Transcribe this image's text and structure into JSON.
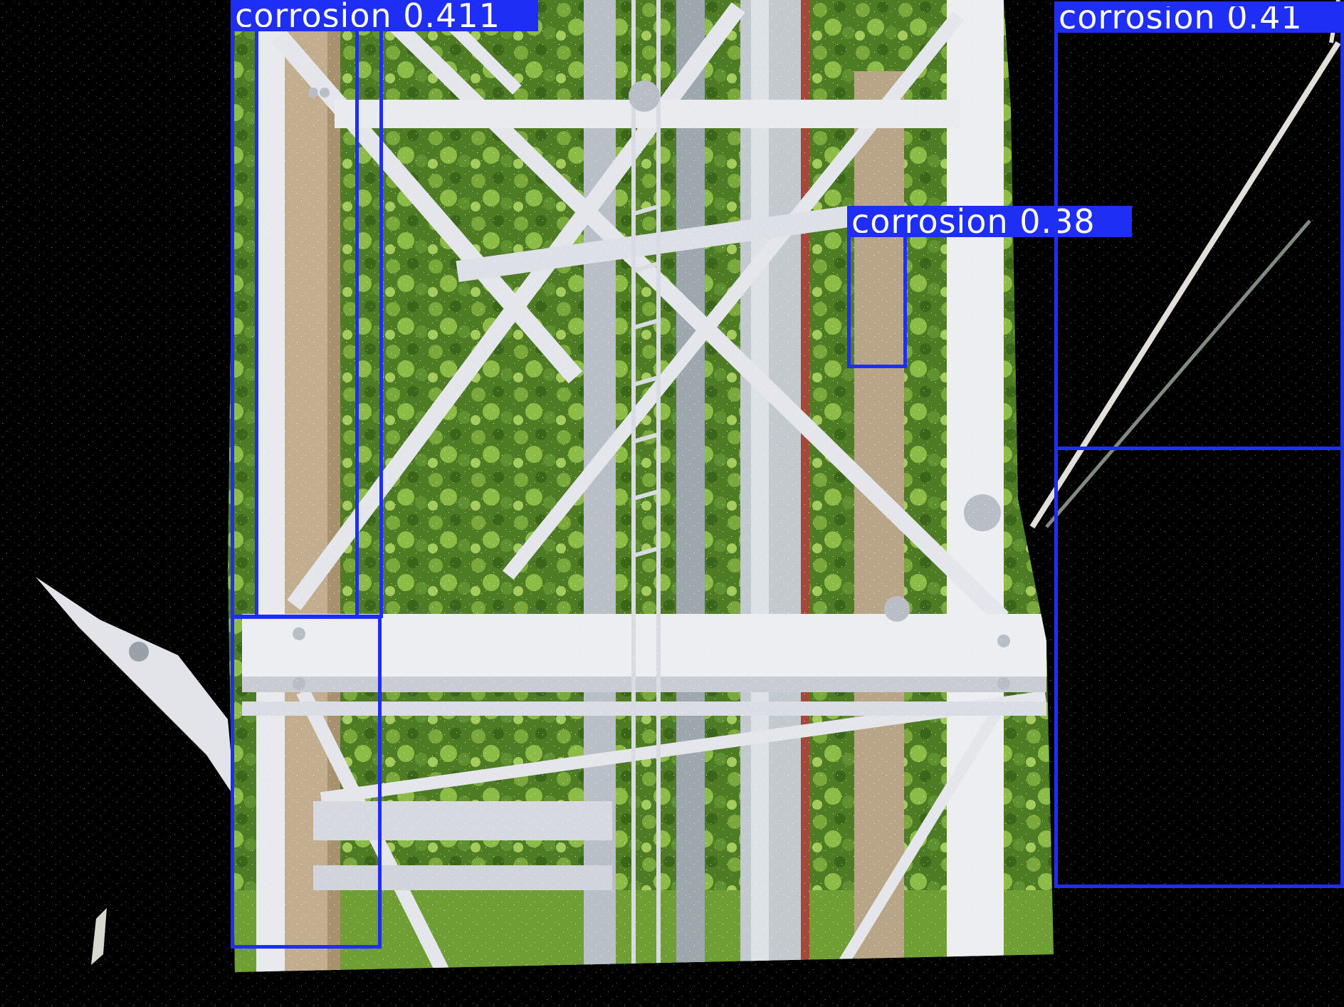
{
  "image": {
    "subject": "steel-lattice-tower-aerial-view",
    "background_color": "#000000",
    "foliage_color": "#5b8a2c",
    "steel_color": "#e6e8ee",
    "detection_color": "#1f2ef5"
  },
  "detections": [
    {
      "label": "corrosion",
      "score": "0.411",
      "text": "corrosion 0.411"
    },
    {
      "label": "corrosion",
      "score": "0.38",
      "text": "corrosion 0.38"
    },
    {
      "label": "corrosion",
      "score": "0.41",
      "text": "corrosion 0.41"
    }
  ]
}
